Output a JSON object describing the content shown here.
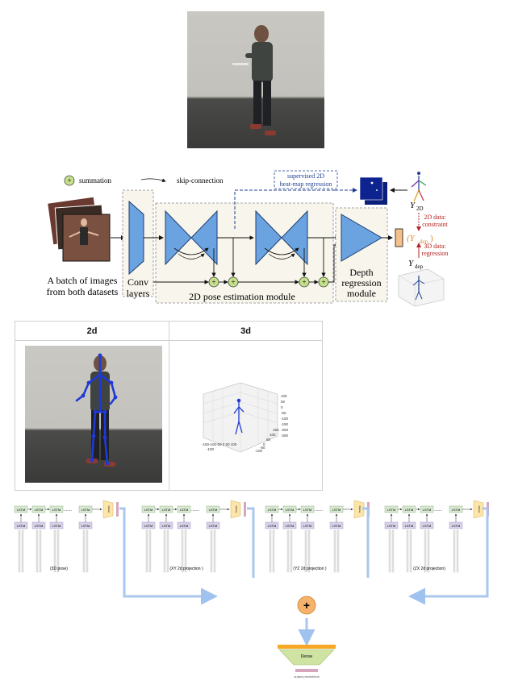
{
  "legend": {
    "summation": "summation",
    "skip": "skip-connection",
    "plus": "+"
  },
  "architecture": {
    "batch_caption_1": "A batch of images",
    "batch_caption_2": "from both datasets",
    "conv_1": "Conv",
    "conv_2": "layers",
    "pose2d_module": "2D pose estimation module",
    "depth_1": "Depth",
    "depth_2": "regression",
    "depth_3": "module",
    "supervised_1": "supervised 2D",
    "supervised_2": "heat-map regression",
    "y2d": "Y",
    "y2d_sub": "2D",
    "ydep_paren": "(Y",
    "ydep_sub": "dep",
    "ydep_close": ")",
    "ydep": "Y",
    "data2d_1": "2D data:",
    "data2d_2": "constraint",
    "data3d_1": "3D data:",
    "data3d_2": "regression"
  },
  "table": {
    "col_2d": "2d",
    "col_3d": "3d",
    "ticks_z": [
      "100",
      "50",
      "0",
      "-50",
      "-100",
      "-150",
      "-200",
      "-250"
    ],
    "ticks_x": "-150-100-50 0 50 100",
    "ticks_x2": "-100",
    "ticks_y": [
      "150",
      "100",
      "50",
      "0",
      "-50",
      "-100"
    ]
  },
  "lstm": {
    "cell": "LSTM",
    "dots": ".......",
    "dense_small": "Dense",
    "captions": [
      "(3D pose)",
      "(XY 2d projection )",
      "(YZ 2d projection )",
      "(ZX 2d projection)"
    ],
    "plus": "+",
    "dense": "Dense",
    "output": "output predictions"
  },
  "colors": {
    "accent_blue": "#6aa3e0",
    "lstm_green": "#d9ead3",
    "lstm_purple": "#d9d2e9",
    "summation_green": "#c5e08a",
    "plus_orange": "#f6b26b",
    "dense_yellow": "#fce5a8",
    "dense_green": "#cfe3a3"
  }
}
